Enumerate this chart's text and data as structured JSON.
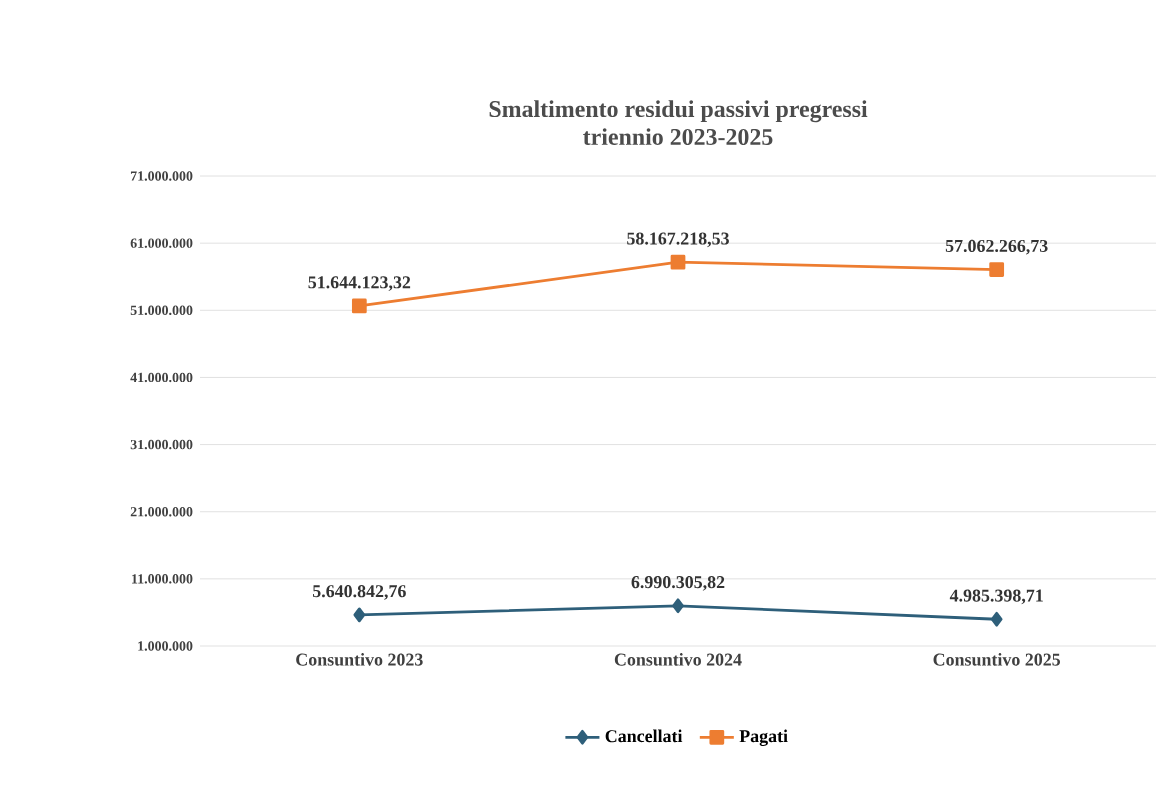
{
  "chart_data": {
    "type": "line",
    "title": "Smaltimento residui passivi pregressi\ntriennio 2023-2025",
    "categories": [
      "Consuntivo 2023",
      "Consuntivo 2024",
      "Consuntivo 2025"
    ],
    "series": [
      {
        "name": "Cancellati",
        "color": "#2e5f7a",
        "marker": "diamond",
        "values": [
          5640842.76,
          6990305.82,
          4985398.71
        ],
        "value_labels": [
          "5.640.842,76",
          "6.990.305,82",
          "4.985.398,71"
        ]
      },
      {
        "name": "Pagati",
        "color": "#ed7d31",
        "marker": "square",
        "values": [
          51644123.32,
          58167218.53,
          57062266.73
        ],
        "value_labels": [
          "51.644.123,32",
          "58.167.218,53",
          "57.062.266,73"
        ]
      }
    ],
    "ylim": [
      1000000,
      71000000
    ],
    "yticks": [
      {
        "value": 1000000,
        "label": "1.000.000"
      },
      {
        "value": 11000000,
        "label": "11.000.000"
      },
      {
        "value": 21000000,
        "label": "21.000.000"
      },
      {
        "value": 31000000,
        "label": "31.000.000"
      },
      {
        "value": 41000000,
        "label": "41.000.000"
      },
      {
        "value": 51000000,
        "label": "51.000.000"
      },
      {
        "value": 61000000,
        "label": "61.000.000"
      },
      {
        "value": 71000000,
        "label": "71.000.000"
      }
    ],
    "grid": "y",
    "legend": "bottom"
  }
}
